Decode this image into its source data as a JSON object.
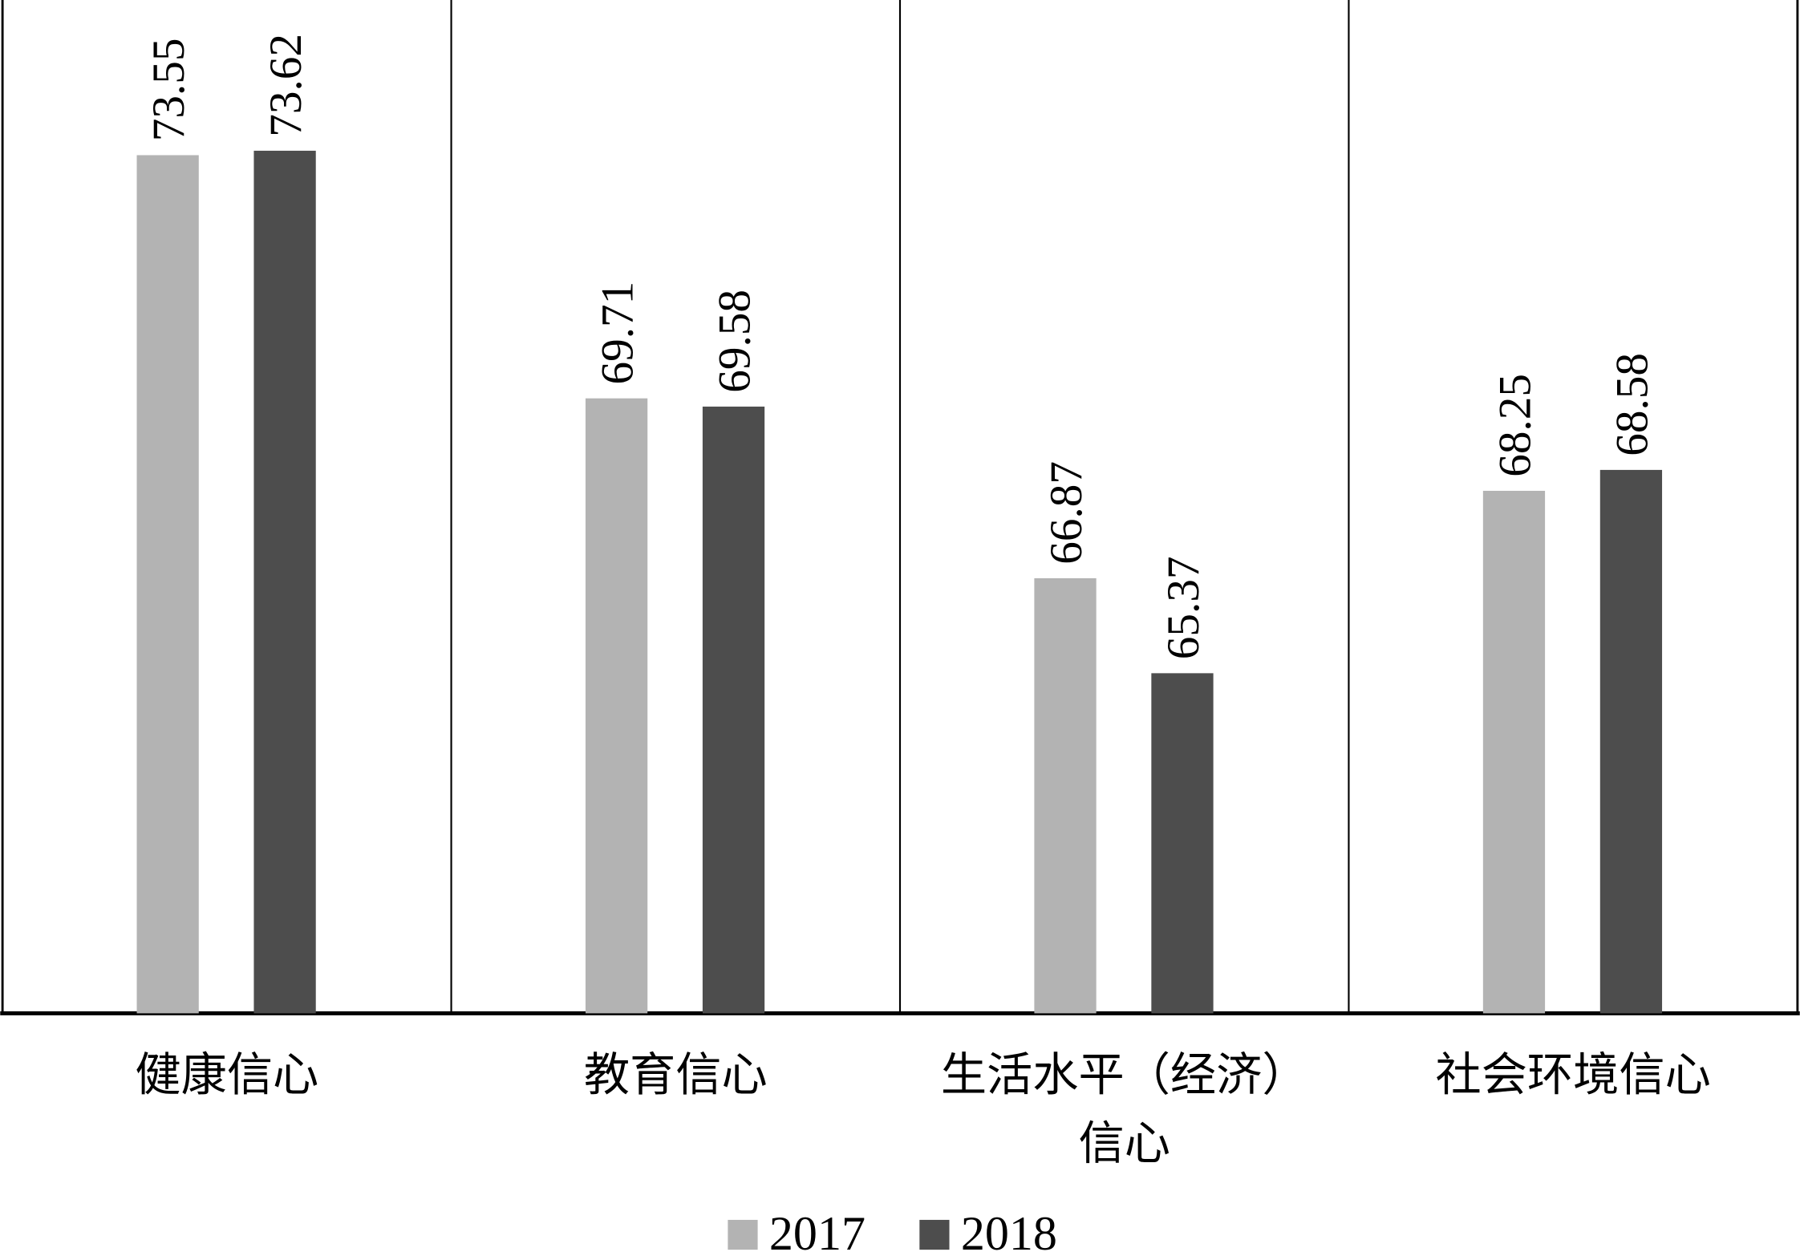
{
  "chart_data": {
    "type": "bar",
    "title": "",
    "xlabel": "",
    "ylabel": "",
    "ylim": [
      60,
      76
    ],
    "grid": false,
    "legend_position": "bottom",
    "categories": [
      [
        "健康信心"
      ],
      [
        "教育信心"
      ],
      [
        "生活水平（经济）",
        "信心"
      ],
      [
        "社会环境信心"
      ]
    ],
    "series": [
      {
        "name": "2017",
        "color": "#b3b3b3",
        "values": [
          73.55,
          69.71,
          66.87,
          68.25
        ],
        "labels": [
          "73.55",
          "69.71",
          "66.87",
          "68.25"
        ]
      },
      {
        "name": "2018",
        "color": "#4d4d4d",
        "values": [
          73.62,
          69.58,
          65.37,
          68.58
        ],
        "labels": [
          "73.62",
          "69.58",
          "65.37",
          "68.58"
        ]
      }
    ]
  }
}
